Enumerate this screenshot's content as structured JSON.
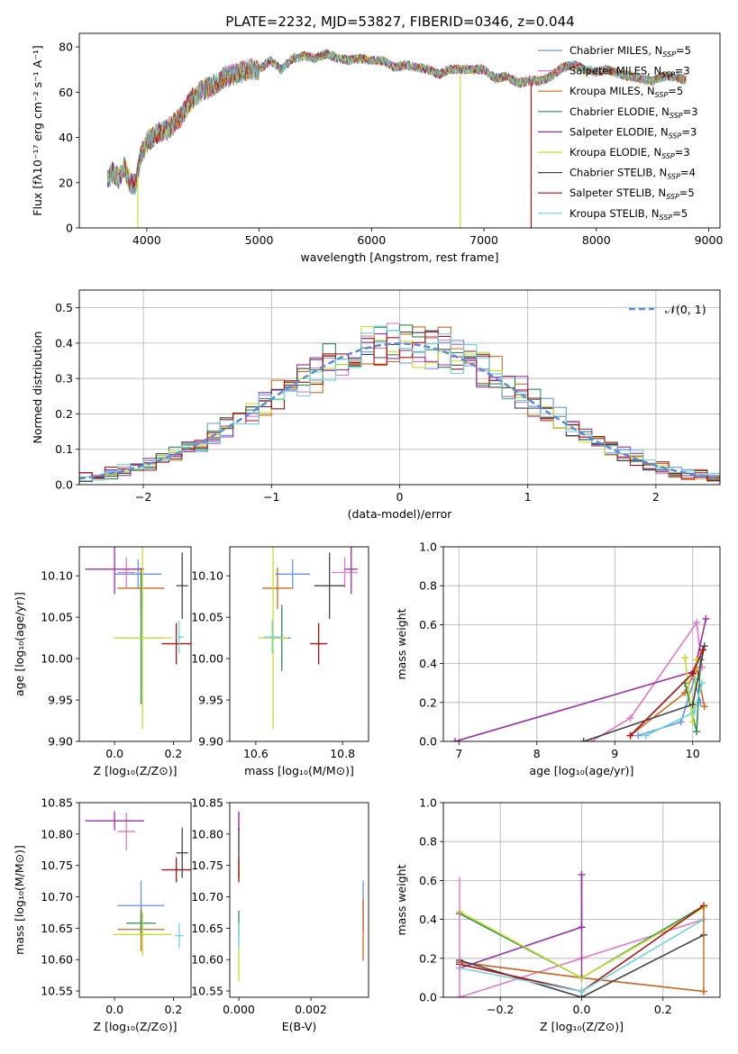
{
  "figure_title": "PLATE=2232, MJD=53827, FIBERID=0346, z=0.044",
  "legend": {
    "entries": [
      {
        "label": "Chabrier MILES, N",
        "sub": "SSP",
        "tail": "=5",
        "color": "#6495ed"
      },
      {
        "label": "Salpeter MILES, N",
        "sub": "SSP",
        "tail": "=3",
        "color": "#e377c2"
      },
      {
        "label": "Kroupa MILES, N",
        "sub": "SSP",
        "tail": "=5",
        "color": "#d2691e"
      },
      {
        "label": "Chabrier ELODIE, N",
        "sub": "SSP",
        "tail": "=3",
        "color": "#2e8b57"
      },
      {
        "label": "Salpeter ELODIE, N",
        "sub": "SSP",
        "tail": "=3",
        "color": "#9b30a8"
      },
      {
        "label": "Kroupa ELODIE, N",
        "sub": "SSP",
        "tail": "=3",
        "color": "#c5e02c"
      },
      {
        "label": "Chabrier STELIB, N",
        "sub": "SSP",
        "tail": "=4",
        "color": "#444444"
      },
      {
        "label": "Salpeter STELIB, N",
        "sub": "SSP",
        "tail": "=5",
        "color": "#b01010"
      },
      {
        "label": "Kroupa STELIB, N",
        "sub": "SSP",
        "tail": "=5",
        "color": "#6fd3dc"
      }
    ],
    "gauss_label": "𝒩(0, 1)"
  },
  "chart_data": [
    {
      "id": "spectrum",
      "type": "line",
      "title": "PLATE=2232, MJD=53827, FIBERID=0346, z=0.044",
      "xlabel": "wavelength [Angstrom, rest frame]",
      "ylabel": "Flux [fλ10⁻¹⁷ erg cm⁻² s⁻¹ A⁻¹]",
      "xlim": [
        3400,
        9100
      ],
      "ylim": [
        0,
        86
      ],
      "xticks": [
        4000,
        5000,
        6000,
        7000,
        8000,
        9000
      ],
      "yticks": [
        0,
        20,
        40,
        60,
        80
      ],
      "x": [
        3650,
        3700,
        3750,
        3800,
        3850,
        3900,
        3950,
        4000,
        4100,
        4200,
        4300,
        4400,
        4500,
        4600,
        4700,
        4800,
        4900,
        5000,
        5100,
        5200,
        5300,
        5400,
        5500,
        5600,
        5700,
        5800,
        5900,
        6000,
        6100,
        6200,
        6300,
        6400,
        6500,
        6600,
        6700,
        6800,
        6900,
        7000,
        7100,
        7200,
        7300,
        7400,
        7500,
        7600,
        7700,
        7800,
        7900,
        8000,
        8100,
        8200,
        8300,
        8400,
        8500,
        8600,
        8700,
        8800
      ],
      "y": [
        21,
        25,
        22,
        27,
        20,
        19,
        32,
        38,
        42,
        44,
        49,
        57,
        61,
        63,
        67,
        68,
        70,
        70,
        74,
        70,
        75,
        76,
        75,
        77,
        75,
        74,
        75,
        74,
        74,
        71,
        72,
        71,
        70,
        68,
        70,
        70,
        70,
        70,
        66,
        67,
        64,
        65,
        65,
        67,
        71,
        72,
        70,
        69,
        70,
        68,
        67,
        66,
        65,
        67,
        67,
        65
      ],
      "dips": [
        {
          "x": 3920,
          "y": 0
        },
        {
          "x": 6790,
          "y": 0
        },
        {
          "x": 7420,
          "y": 0
        }
      ],
      "grid": false
    },
    {
      "id": "residuals",
      "type": "histogram",
      "xlabel": "(data-model)/error",
      "ylabel": "Normed distribution",
      "xlim": [
        -2.5,
        2.5
      ],
      "ylim": [
        0,
        0.55
      ],
      "xticks": [
        -2,
        -1,
        0,
        1,
        2
      ],
      "yticks": [
        0.0,
        0.1,
        0.2,
        0.3,
        0.4,
        0.5
      ],
      "bin_width": 0.1,
      "gaussian": {
        "mean": 0,
        "sigma": 1,
        "label": "𝒩(0, 1)"
      },
      "grid": true
    },
    {
      "id": "age_vs_Z",
      "type": "scatter",
      "xlabel": "Z [log₁₀(Z/Z⊙)]",
      "ylabel": "age  [log₁₀(age/yr)]",
      "xlim": [
        -0.12,
        0.26
      ],
      "ylim": [
        9.9,
        10.135
      ],
      "xticks": [
        0.0,
        0.2
      ],
      "yticks": [
        9.9,
        9.95,
        10.0,
        10.05,
        10.1
      ],
      "points": [
        {
          "x": 0.08,
          "y": 10.102,
          "xerr": 0.08,
          "yerr": 0.018
        },
        {
          "x": 0.04,
          "y": 10.104,
          "xerr": 0.03,
          "yerr": 0.018
        },
        {
          "x": 0.09,
          "y": 10.085,
          "xerr": 0.08,
          "yerr": 0.025
        },
        {
          "x": 0.09,
          "y": 10.025,
          "xerr": 0.07,
          "yerr": 0.08
        },
        {
          "x": 0.0,
          "y": 10.108,
          "xerr": 0.1,
          "yerr": 0.03
        },
        {
          "x": 0.095,
          "y": 10.025,
          "xerr": 0.1,
          "yerr": 0.11
        },
        {
          "x": 0.23,
          "y": 10.088,
          "xerr": 0.02,
          "yerr": 0.04
        },
        {
          "x": 0.21,
          "y": 10.018,
          "xerr": 0.05,
          "yerr": 0.025
        },
        {
          "x": 0.22,
          "y": 10.026,
          "xerr": 0.015,
          "yerr": 0.02
        }
      ]
    },
    {
      "id": "age_vs_mass",
      "type": "scatter",
      "xlabel": "mass [log₁₀(M/M⊙)]",
      "ylabel": "",
      "xlim": [
        10.54,
        10.86
      ],
      "ylim": [
        9.9,
        10.135
      ],
      "xticks": [
        10.6,
        10.8
      ],
      "yticks": [
        9.9,
        9.95,
        10.0,
        10.05,
        10.1
      ],
      "points": [
        {
          "x": 10.685,
          "y": 10.102,
          "xerr": 0.04,
          "yerr": 0.018
        },
        {
          "x": 10.805,
          "y": 10.104,
          "xerr": 0.03,
          "yerr": 0.018
        },
        {
          "x": 10.65,
          "y": 10.085,
          "xerr": 0.035,
          "yerr": 0.025
        },
        {
          "x": 10.66,
          "y": 10.025,
          "xerr": 0.02,
          "yerr": 0.04
        },
        {
          "x": 10.82,
          "y": 10.108,
          "xerr": 0.015,
          "yerr": 0.03
        },
        {
          "x": 10.64,
          "y": 10.025,
          "xerr": 0.035,
          "yerr": 0.11
        },
        {
          "x": 10.77,
          "y": 10.088,
          "xerr": 0.035,
          "yerr": 0.04
        },
        {
          "x": 10.745,
          "y": 10.018,
          "xerr": 0.02,
          "yerr": 0.025
        },
        {
          "x": 10.638,
          "y": 10.026,
          "xerr": 0.02,
          "yerr": 0.02
        }
      ]
    },
    {
      "id": "weight_vs_age",
      "type": "line",
      "xlabel": "age  [log₁₀(age/yr)]",
      "ylabel": "mass weight",
      "xlim": [
        6.8,
        10.35
      ],
      "ylim": [
        0,
        1
      ],
      "xticks": [
        7,
        8,
        9,
        10
      ],
      "yticks": [
        0.0,
        0.2,
        0.4,
        0.6,
        0.8,
        1.0
      ],
      "grid": true
    },
    {
      "id": "mass_vs_Z",
      "type": "scatter",
      "xlabel": "Z [log₁₀(Z/Z⊙)]",
      "ylabel": "mass [log₁₀(M/M⊙)]",
      "xlim": [
        -0.12,
        0.26
      ],
      "ylim": [
        10.54,
        10.85
      ],
      "xticks": [
        0.0,
        0.2
      ],
      "yticks": [
        10.55,
        10.6,
        10.65,
        10.7,
        10.75,
        10.8,
        10.85
      ],
      "points": [
        {
          "x": 0.09,
          "y": 10.686,
          "xerr": 0.08,
          "yerr": 0.04
        },
        {
          "x": 0.04,
          "y": 10.804,
          "xerr": 0.03,
          "yerr": 0.03
        },
        {
          "x": 0.09,
          "y": 10.648,
          "xerr": 0.08,
          "yerr": 0.035
        },
        {
          "x": 0.09,
          "y": 10.658,
          "xerr": 0.05,
          "yerr": 0.02
        },
        {
          "x": 0.0,
          "y": 10.821,
          "xerr": 0.1,
          "yerr": 0.015
        },
        {
          "x": 0.095,
          "y": 10.64,
          "xerr": 0.1,
          "yerr": 0.035
        },
        {
          "x": 0.23,
          "y": 10.77,
          "xerr": 0.02,
          "yerr": 0.04
        },
        {
          "x": 0.21,
          "y": 10.743,
          "xerr": 0.05,
          "yerr": 0.02
        },
        {
          "x": 0.22,
          "y": 10.638,
          "xerr": 0.015,
          "yerr": 0.02
        }
      ]
    },
    {
      "id": "mass_vs_ebv",
      "type": "scatter",
      "xlabel": "E(B-V)",
      "ylabel": "",
      "xlim": [
        -0.00025,
        0.0036
      ],
      "ylim": [
        10.54,
        10.85
      ],
      "xticks": [
        0.0,
        0.002
      ],
      "yticks": [
        10.55,
        10.6,
        10.65,
        10.7,
        10.75,
        10.8,
        10.85
      ],
      "points": [
        {
          "x": 0.00345,
          "y": 10.686,
          "xerr": 0,
          "yerr": 0.04
        },
        {
          "x": 0.0,
          "y": 10.804,
          "xerr": 0,
          "yerr": 0.03
        },
        {
          "x": 0.00345,
          "y": 10.648,
          "xerr": 0,
          "yerr": 0.05
        },
        {
          "x": 0.0,
          "y": 10.658,
          "xerr": 0,
          "yerr": 0.02
        },
        {
          "x": 0.0,
          "y": 10.821,
          "xerr": 0,
          "yerr": 0.015
        },
        {
          "x": 0.0,
          "y": 10.6,
          "xerr": 0,
          "yerr": 0.035
        },
        {
          "x": 0.0,
          "y": 10.77,
          "xerr": 0,
          "yerr": 0.04
        },
        {
          "x": 0.0,
          "y": 10.743,
          "xerr": 0,
          "yerr": 0.02
        },
        {
          "x": 0.0,
          "y": 10.638,
          "xerr": 0,
          "yerr": 0.02
        }
      ]
    },
    {
      "id": "weight_vs_Z",
      "type": "line",
      "xlabel": "Z [log₁₀(Z/Z⊙)]",
      "ylabel": "mass weight",
      "xlim": [
        -0.34,
        0.34
      ],
      "ylim": [
        0,
        1
      ],
      "xticks": [
        -0.2,
        0.0,
        0.2
      ],
      "yticks": [
        0.0,
        0.2,
        0.4,
        0.6,
        0.8,
        1.0
      ],
      "grid": true,
      "series": [
        {
          "x": [
            -0.3,
            0.0,
            0.3
          ],
          "y": [
            0.18,
            0.1,
            0.03
          ]
        },
        {
          "x": [
            -0.3,
            0.0,
            0.3
          ],
          "y": [
            0.0,
            0.2,
            0.4
          ]
        },
        {
          "x": [
            -0.3,
            0.0,
            0.3
          ],
          "y": [
            0.18,
            0.1,
            0.03
          ]
        },
        {
          "x": [
            -0.3,
            0.0,
            0.3
          ],
          "y": [
            0.43,
            0.1,
            0.47
          ]
        },
        {
          "x": [
            -0.3,
            0.0,
            0.0
          ],
          "y": [
            0.15,
            0.36,
            0.63
          ]
        },
        {
          "x": [
            -0.3,
            0.0,
            0.3
          ],
          "y": [
            0.44,
            0.1,
            0.46
          ]
        },
        {
          "x": [
            -0.3,
            0.0,
            0.3
          ],
          "y": [
            0.19,
            0.0,
            0.32
          ]
        },
        {
          "x": [
            -0.3,
            0.0,
            0.3
          ],
          "y": [
            0.17,
            0.03,
            0.47
          ]
        },
        {
          "x": [
            -0.3,
            0.0,
            0.3
          ],
          "y": [
            0.15,
            0.03,
            0.4
          ]
        }
      ]
    }
  ]
}
